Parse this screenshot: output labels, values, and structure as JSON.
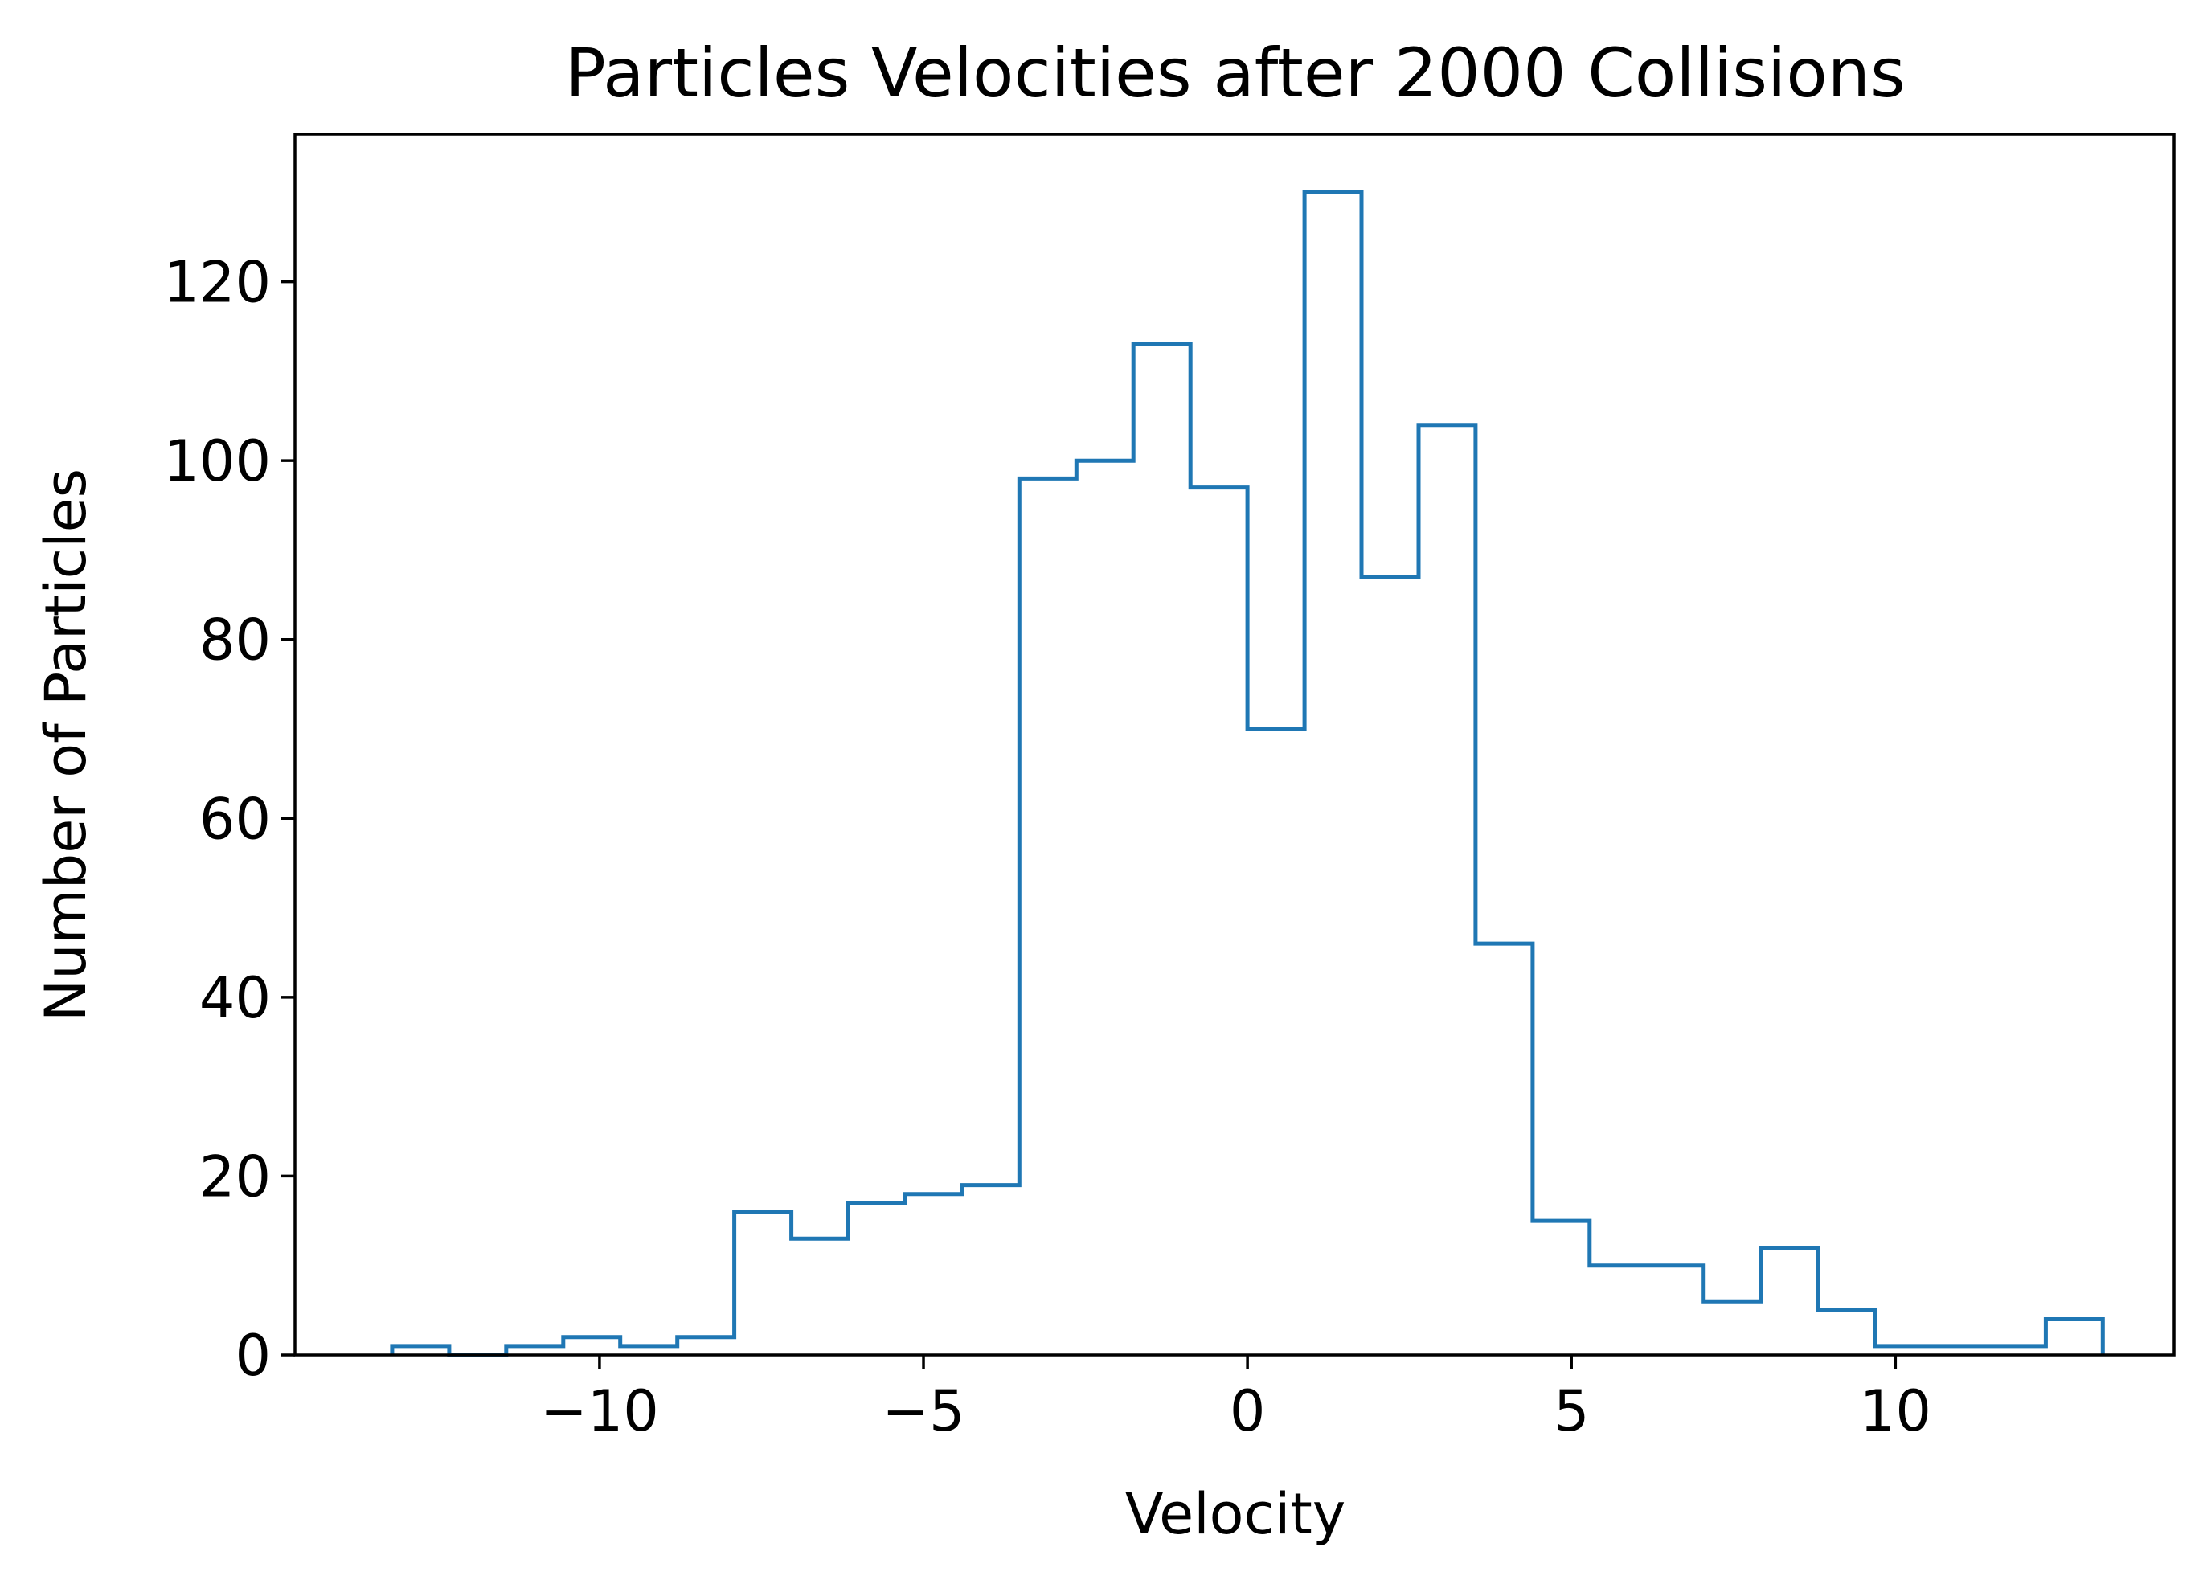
{
  "chart_data": {
    "type": "histogram",
    "title": "Particles Velocities after 2000 Collisions",
    "xlabel": "Velocity",
    "ylabel": "Number of Particles",
    "xlim": [
      -14.7,
      14.3
    ],
    "ylim": [
      0,
      136.5
    ],
    "grid": false,
    "series_color": "#1f77b4",
    "bin_edges": [
      -13.2,
      -12.32,
      -11.44,
      -10.56,
      -9.68,
      -8.8,
      -7.92,
      -7.04,
      -6.16,
      -5.28,
      -4.4,
      -3.52,
      -2.64,
      -1.76,
      -0.88,
      0.0,
      0.88,
      1.76,
      2.64,
      3.52,
      4.4,
      5.28,
      6.16,
      7.04,
      7.92,
      8.8,
      9.68,
      10.56,
      11.44,
      12.32,
      13.2
    ],
    "counts": [
      1,
      0,
      1,
      2,
      1,
      2,
      16,
      13,
      17,
      18,
      19,
      98,
      100,
      113,
      97,
      70,
      130,
      87,
      104,
      46,
      15,
      10,
      10,
      6,
      12,
      5,
      1,
      1,
      1,
      4
    ],
    "xticks": [
      -10,
      -5,
      0,
      5,
      10
    ],
    "xtick_labels": [
      "−10",
      "−5",
      "0",
      "5",
      "10"
    ],
    "yticks": [
      0,
      20,
      40,
      60,
      80,
      100,
      120
    ],
    "ytick_labels": [
      "0",
      "20",
      "40",
      "60",
      "80",
      "100",
      "120"
    ]
  }
}
